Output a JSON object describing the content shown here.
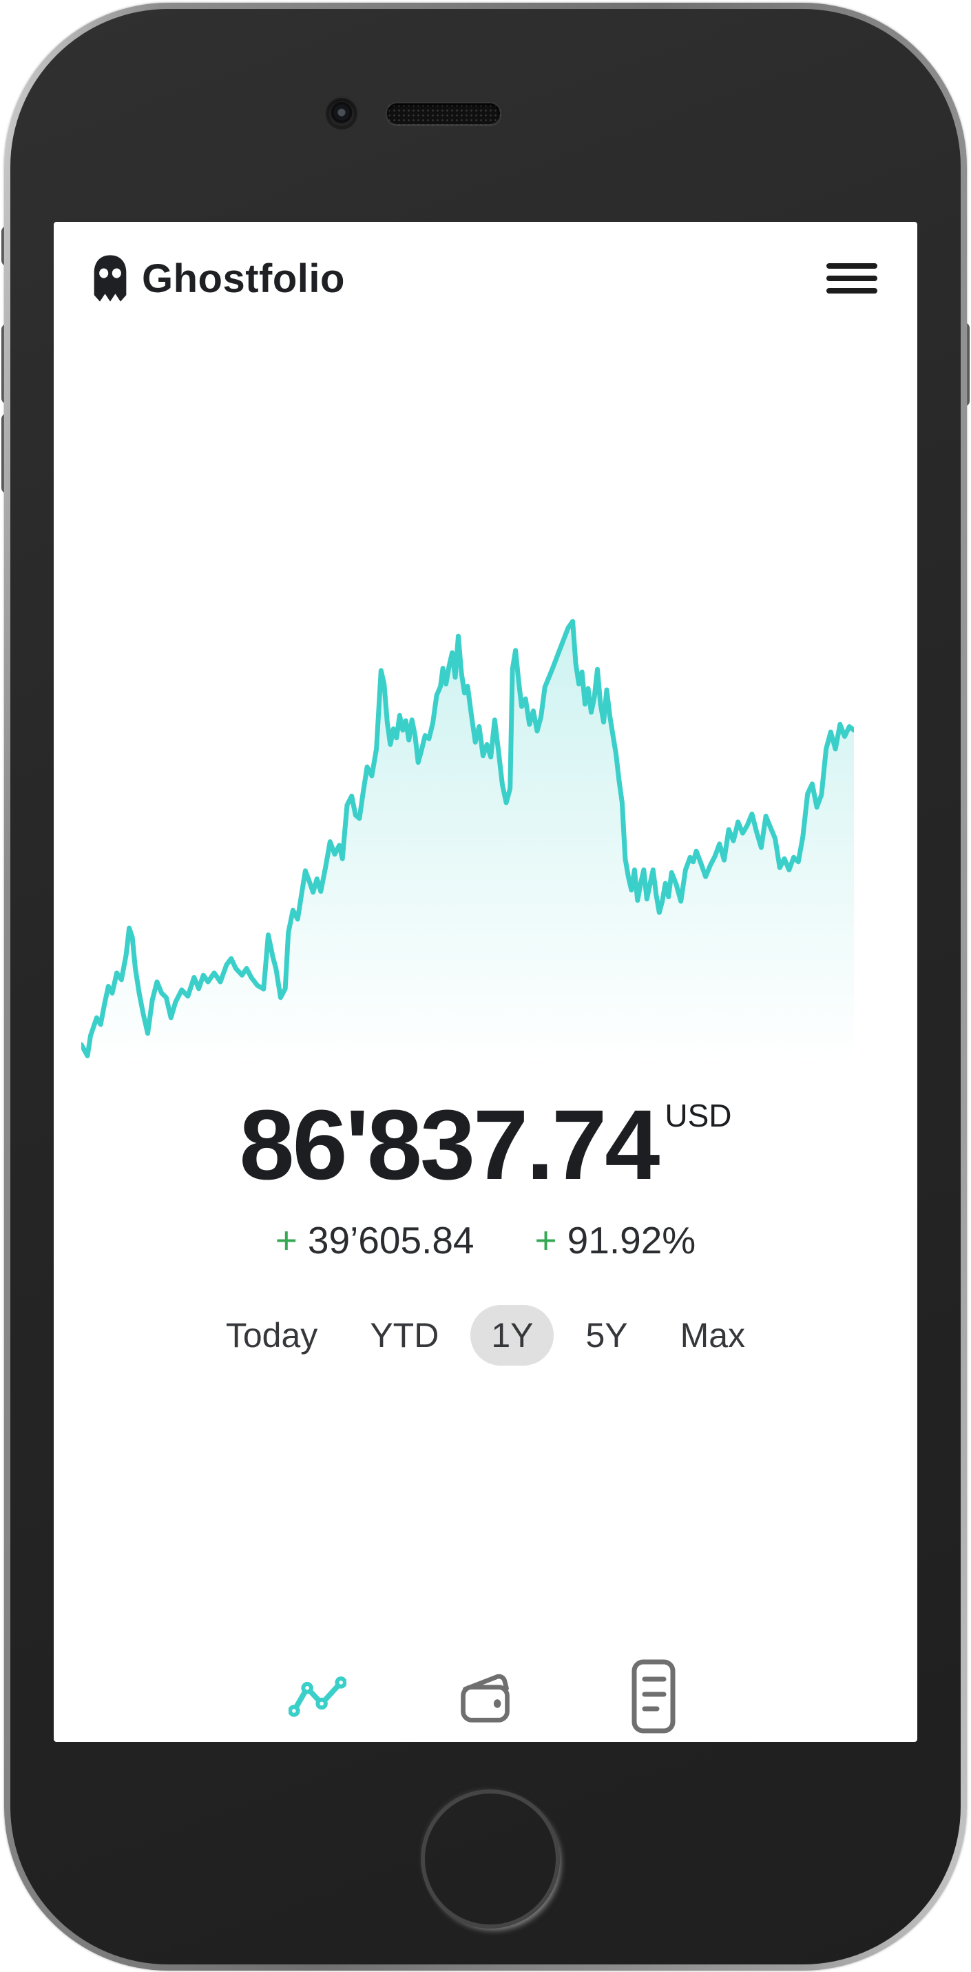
{
  "theme": {
    "accent": "#3bcfc9",
    "positive": "#34a853",
    "text_primary": "#1f2023",
    "icon_muted": "#6f6f6f",
    "pill_bg": "#e0e0e0"
  },
  "header": {
    "app_title": "Ghostfolio",
    "logo_icon": "ghost-icon",
    "menu_icon": "hamburger-menu-icon"
  },
  "portfolio": {
    "total_value": "86'837.74",
    "currency": "USD",
    "gain_amount_sign": "+",
    "gain_amount": "39’605.84",
    "gain_percent_sign": "+",
    "gain_percent": "91.92%"
  },
  "range_selector": {
    "options": [
      {
        "label": "Today",
        "selected": false
      },
      {
        "label": "YTD",
        "selected": false
      },
      {
        "label": "1Y",
        "selected": true
      },
      {
        "label": "5Y",
        "selected": false
      },
      {
        "label": "Max",
        "selected": false
      }
    ]
  },
  "bottom_nav": {
    "items": [
      {
        "name": "performance",
        "icon": "line-chart-icon",
        "active": true
      },
      {
        "name": "wallet",
        "icon": "wallet-icon",
        "active": false
      },
      {
        "name": "transactions",
        "icon": "report-icon",
        "active": false
      }
    ]
  },
  "chart_data": {
    "type": "area",
    "title": "",
    "x_axis": "time (selected range: 1Y)",
    "y_axis": "portfolio value (USD)",
    "axes_labeled": false,
    "grid": false,
    "legend": false,
    "line_color": "#3bcfc9",
    "fill_top": "rgba(63,207,201,0.26)",
    "fill_bottom": "rgba(63,207,201,0)",
    "end_value": 86837.74,
    "gain_absolute": 39605.84,
    "gain_percent": 91.92,
    "points_normalized": [
      [
        0.0,
        0.96
      ],
      [
        0.008,
        0.985
      ],
      [
        0.012,
        0.94
      ],
      [
        0.02,
        0.9
      ],
      [
        0.025,
        0.915
      ],
      [
        0.03,
        0.87
      ],
      [
        0.035,
        0.83
      ],
      [
        0.04,
        0.845
      ],
      [
        0.046,
        0.8
      ],
      [
        0.052,
        0.815
      ],
      [
        0.058,
        0.76
      ],
      [
        0.062,
        0.7
      ],
      [
        0.066,
        0.72
      ],
      [
        0.07,
        0.79
      ],
      [
        0.075,
        0.845
      ],
      [
        0.08,
        0.89
      ],
      [
        0.086,
        0.935
      ],
      [
        0.092,
        0.86
      ],
      [
        0.098,
        0.82
      ],
      [
        0.104,
        0.845
      ],
      [
        0.11,
        0.855
      ],
      [
        0.116,
        0.9
      ],
      [
        0.122,
        0.865
      ],
      [
        0.13,
        0.838
      ],
      [
        0.138,
        0.852
      ],
      [
        0.146,
        0.81
      ],
      [
        0.152,
        0.835
      ],
      [
        0.158,
        0.805
      ],
      [
        0.164,
        0.82
      ],
      [
        0.172,
        0.8
      ],
      [
        0.18,
        0.82
      ],
      [
        0.188,
        0.782
      ],
      [
        0.194,
        0.768
      ],
      [
        0.2,
        0.79
      ],
      [
        0.208,
        0.805
      ],
      [
        0.214,
        0.79
      ],
      [
        0.22,
        0.81
      ],
      [
        0.228,
        0.828
      ],
      [
        0.236,
        0.836
      ],
      [
        0.242,
        0.715
      ],
      [
        0.248,
        0.765
      ],
      [
        0.252,
        0.79
      ],
      [
        0.258,
        0.855
      ],
      [
        0.264,
        0.835
      ],
      [
        0.268,
        0.71
      ],
      [
        0.274,
        0.66
      ],
      [
        0.28,
        0.68
      ],
      [
        0.285,
        0.625
      ],
      [
        0.29,
        0.572
      ],
      [
        0.295,
        0.595
      ],
      [
        0.3,
        0.62
      ],
      [
        0.305,
        0.59
      ],
      [
        0.31,
        0.618
      ],
      [
        0.316,
        0.565
      ],
      [
        0.322,
        0.507
      ],
      [
        0.328,
        0.535
      ],
      [
        0.334,
        0.515
      ],
      [
        0.338,
        0.545
      ],
      [
        0.344,
        0.425
      ],
      [
        0.35,
        0.405
      ],
      [
        0.355,
        0.448
      ],
      [
        0.36,
        0.455
      ],
      [
        0.365,
        0.395
      ],
      [
        0.37,
        0.34
      ],
      [
        0.376,
        0.36
      ],
      [
        0.382,
        0.3
      ],
      [
        0.388,
        0.125
      ],
      [
        0.392,
        0.155
      ],
      [
        0.396,
        0.24
      ],
      [
        0.4,
        0.29
      ],
      [
        0.404,
        0.255
      ],
      [
        0.408,
        0.275
      ],
      [
        0.412,
        0.225
      ],
      [
        0.416,
        0.258
      ],
      [
        0.42,
        0.237
      ],
      [
        0.424,
        0.28
      ],
      [
        0.428,
        0.235
      ],
      [
        0.432,
        0.27
      ],
      [
        0.436,
        0.33
      ],
      [
        0.44,
        0.305
      ],
      [
        0.445,
        0.27
      ],
      [
        0.45,
        0.277
      ],
      [
        0.455,
        0.242
      ],
      [
        0.46,
        0.18
      ],
      [
        0.465,
        0.16
      ],
      [
        0.468,
        0.12
      ],
      [
        0.472,
        0.155
      ],
      [
        0.476,
        0.115
      ],
      [
        0.48,
        0.085
      ],
      [
        0.484,
        0.14
      ],
      [
        0.488,
        0.048
      ],
      [
        0.492,
        0.13
      ],
      [
        0.496,
        0.175
      ],
      [
        0.5,
        0.16
      ],
      [
        0.505,
        0.225
      ],
      [
        0.51,
        0.285
      ],
      [
        0.515,
        0.25
      ],
      [
        0.52,
        0.315
      ],
      [
        0.525,
        0.29
      ],
      [
        0.53,
        0.318
      ],
      [
        0.535,
        0.235
      ],
      [
        0.54,
        0.305
      ],
      [
        0.545,
        0.38
      ],
      [
        0.55,
        0.42
      ],
      [
        0.555,
        0.388
      ],
      [
        0.558,
        0.122
      ],
      [
        0.562,
        0.08
      ],
      [
        0.566,
        0.148
      ],
      [
        0.57,
        0.205
      ],
      [
        0.575,
        0.188
      ],
      [
        0.58,
        0.245
      ],
      [
        0.585,
        0.215
      ],
      [
        0.59,
        0.26
      ],
      [
        0.595,
        0.228
      ],
      [
        0.6,
        0.162
      ],
      [
        0.61,
        0.12
      ],
      [
        0.62,
        0.075
      ],
      [
        0.63,
        0.03
      ],
      [
        0.636,
        0.015
      ],
      [
        0.64,
        0.11
      ],
      [
        0.644,
        0.155
      ],
      [
        0.648,
        0.128
      ],
      [
        0.652,
        0.2
      ],
      [
        0.656,
        0.165
      ],
      [
        0.66,
        0.218
      ],
      [
        0.664,
        0.185
      ],
      [
        0.668,
        0.122
      ],
      [
        0.672,
        0.2
      ],
      [
        0.676,
        0.24
      ],
      [
        0.68,
        0.168
      ],
      [
        0.684,
        0.225
      ],
      [
        0.688,
        0.268
      ],
      [
        0.692,
        0.31
      ],
      [
        0.696,
        0.37
      ],
      [
        0.7,
        0.42
      ],
      [
        0.704,
        0.545
      ],
      [
        0.708,
        0.585
      ],
      [
        0.712,
        0.615
      ],
      [
        0.716,
        0.57
      ],
      [
        0.72,
        0.638
      ],
      [
        0.724,
        0.6
      ],
      [
        0.728,
        0.57
      ],
      [
        0.732,
        0.635
      ],
      [
        0.736,
        0.602
      ],
      [
        0.74,
        0.57
      ],
      [
        0.744,
        0.625
      ],
      [
        0.748,
        0.665
      ],
      [
        0.752,
        0.64
      ],
      [
        0.756,
        0.6
      ],
      [
        0.76,
        0.63
      ],
      [
        0.764,
        0.576
      ],
      [
        0.77,
        0.602
      ],
      [
        0.776,
        0.64
      ],
      [
        0.782,
        0.57
      ],
      [
        0.788,
        0.542
      ],
      [
        0.792,
        0.552
      ],
      [
        0.796,
        0.528
      ],
      [
        0.802,
        0.555
      ],
      [
        0.808,
        0.585
      ],
      [
        0.814,
        0.56
      ],
      [
        0.82,
        0.54
      ],
      [
        0.826,
        0.512
      ],
      [
        0.832,
        0.548
      ],
      [
        0.838,
        0.48
      ],
      [
        0.844,
        0.505
      ],
      [
        0.85,
        0.463
      ],
      [
        0.856,
        0.488
      ],
      [
        0.862,
        0.47
      ],
      [
        0.868,
        0.445
      ],
      [
        0.874,
        0.485
      ],
      [
        0.88,
        0.52
      ],
      [
        0.886,
        0.45
      ],
      [
        0.892,
        0.475
      ],
      [
        0.898,
        0.5
      ],
      [
        0.904,
        0.565
      ],
      [
        0.91,
        0.545
      ],
      [
        0.916,
        0.57
      ],
      [
        0.922,
        0.542
      ],
      [
        0.928,
        0.552
      ],
      [
        0.934,
        0.495
      ],
      [
        0.94,
        0.4
      ],
      [
        0.946,
        0.378
      ],
      [
        0.952,
        0.43
      ],
      [
        0.958,
        0.402
      ],
      [
        0.964,
        0.3
      ],
      [
        0.97,
        0.262
      ],
      [
        0.976,
        0.3
      ],
      [
        0.982,
        0.245
      ],
      [
        0.988,
        0.272
      ],
      [
        0.994,
        0.25
      ],
      [
        1.0,
        0.258
      ]
    ]
  }
}
